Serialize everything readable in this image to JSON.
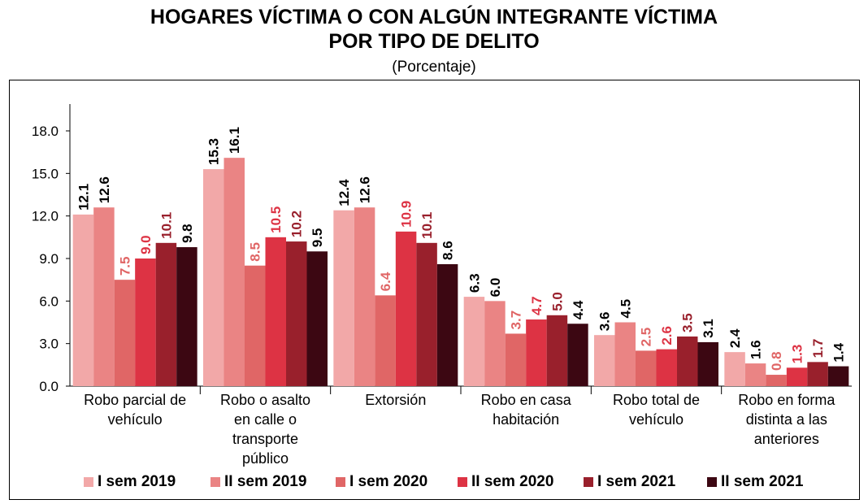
{
  "title_line1": "HOGARES VÍCTIMA O CON ALGÚN INTEGRANTE VÍCTIMA",
  "title_line2": "POR TIPO DE DELITO",
  "subtitle": "(Porcentaje)",
  "chart_data": {
    "type": "bar",
    "title": "HOGARES VÍCTIMA O CON ALGÚN INTEGRANTE VÍCTIMA POR TIPO DE DELITO",
    "subtitle": "(Porcentaje)",
    "xlabel": "",
    "ylabel": "",
    "ylim": [
      0,
      18
    ],
    "yticks": [
      "0.0",
      "3.0",
      "6.0",
      "9.0",
      "12.0",
      "15.0",
      "18.0"
    ],
    "grid": false,
    "legend_position": "bottom",
    "categories": [
      [
        "Robo parcial de",
        "vehículo"
      ],
      [
        "Robo o asalto",
        "en calle o",
        "transporte",
        "público"
      ],
      [
        "Extorsión"
      ],
      [
        "Robo en casa",
        "habitación"
      ],
      [
        "Robo total de",
        "vehículo"
      ],
      [
        "Robo en forma",
        "distinta a las",
        "anteriores"
      ]
    ],
    "series": [
      {
        "name": "I sem 2019",
        "color": "#f2a8a8",
        "label_color": "#000000",
        "values": [
          12.1,
          15.3,
          12.4,
          6.3,
          3.6,
          2.4
        ]
      },
      {
        "name": "II sem 2019",
        "color": "#ea8484",
        "label_color": "#000000",
        "values": [
          12.6,
          16.1,
          12.6,
          6.0,
          4.5,
          1.6
        ]
      },
      {
        "name": "I sem 2020",
        "color": "#e06666",
        "label_color": "#e06666",
        "values": [
          7.5,
          8.5,
          6.4,
          3.7,
          2.5,
          0.8
        ]
      },
      {
        "name": "II sem 2020",
        "color": "#dd3344",
        "label_color": "#dd3344",
        "values": [
          9.0,
          10.5,
          10.9,
          4.7,
          2.6,
          1.3
        ]
      },
      {
        "name": "I sem 2021",
        "color": "#99202c",
        "label_color": "#99202c",
        "values": [
          10.1,
          10.2,
          10.1,
          5.0,
          3.5,
          1.7
        ]
      },
      {
        "name": "II sem 2021",
        "color": "#3c0712",
        "label_color": "#000000",
        "values": [
          9.8,
          9.5,
          8.6,
          4.4,
          3.1,
          1.4
        ]
      }
    ]
  }
}
